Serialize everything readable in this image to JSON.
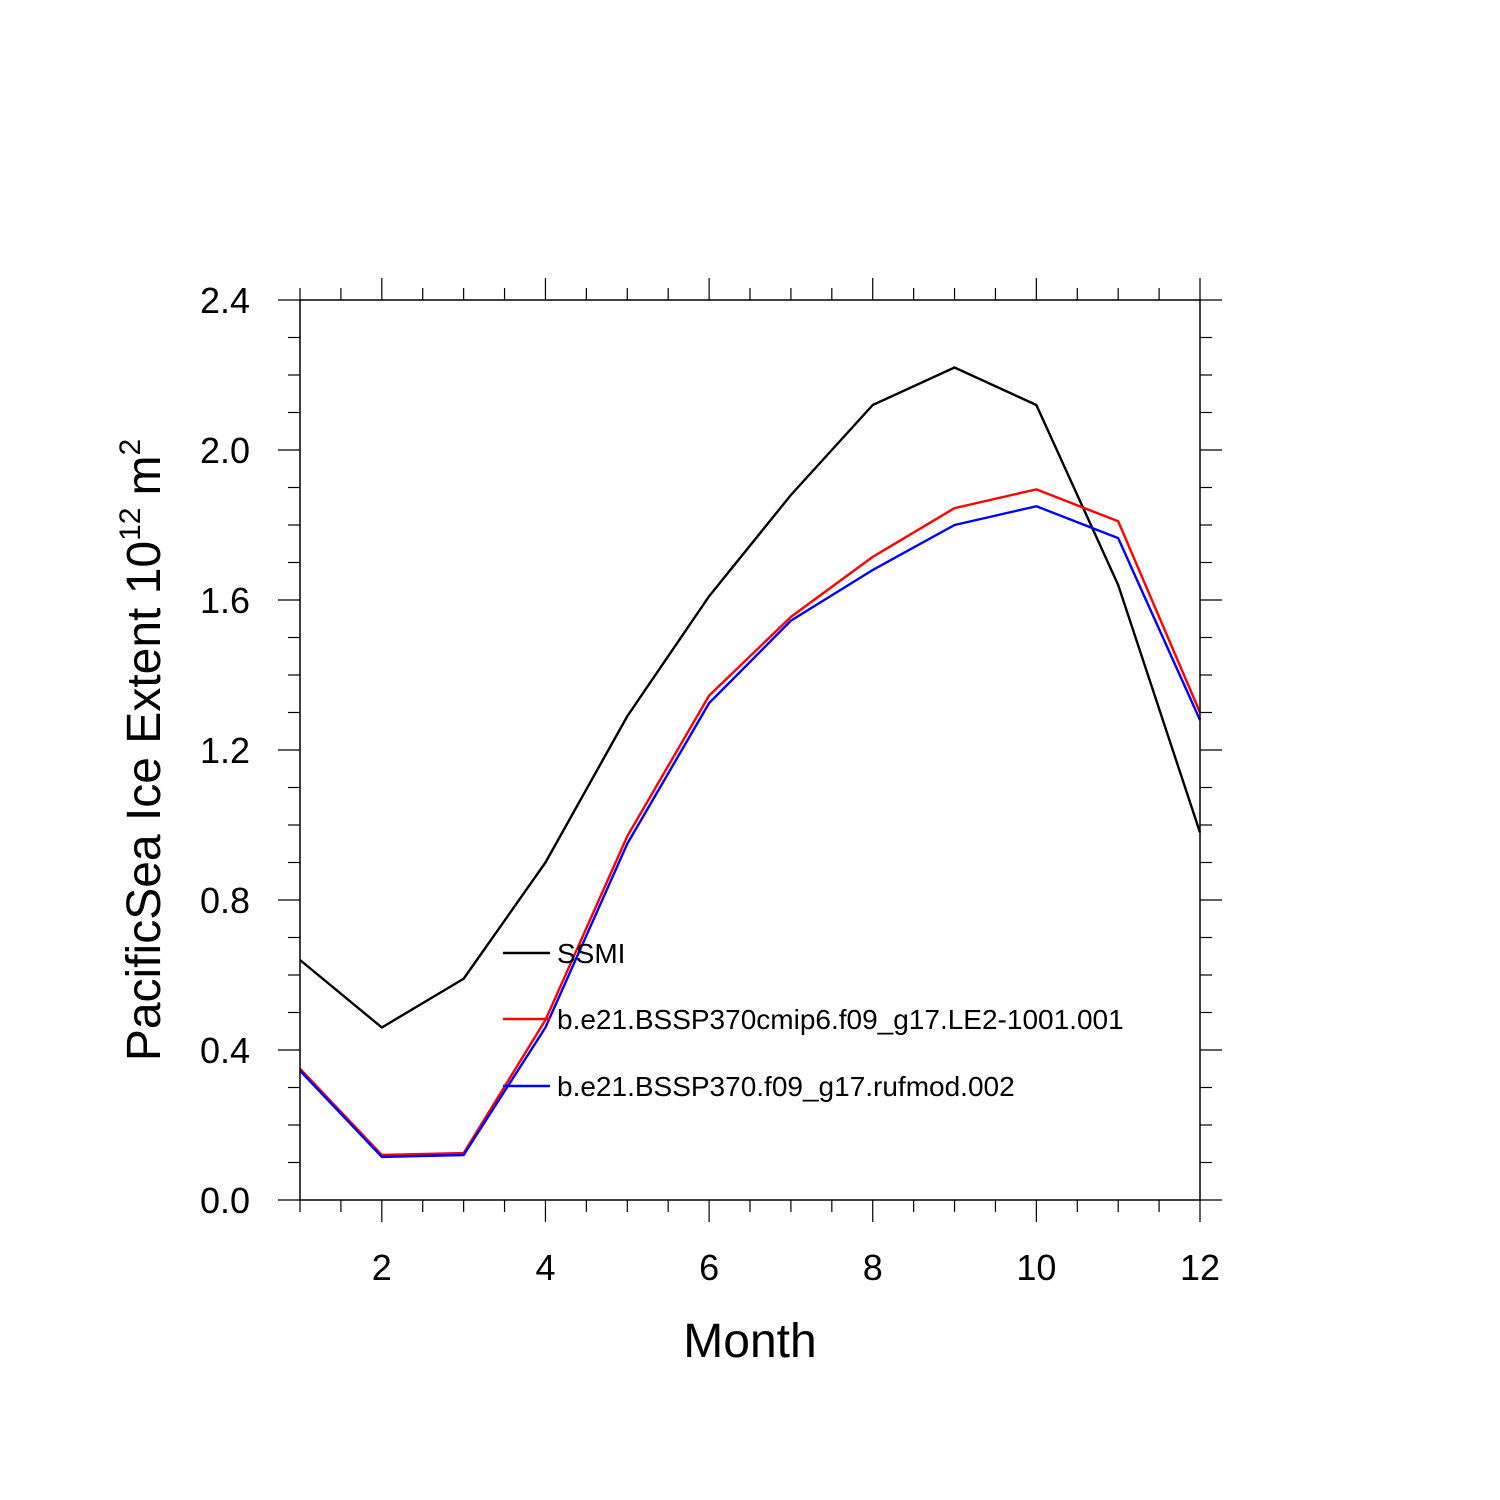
{
  "chart_data": {
    "type": "line",
    "title": "",
    "xlabel": "Month",
    "ylabel": {
      "main": "PacificSea Ice Extent 10",
      "exponent": "12",
      "unit": "m",
      "unit_exponent": "2"
    },
    "xlim": [
      1,
      12
    ],
    "ylim": [
      0,
      2.4
    ],
    "x": [
      1,
      2,
      3,
      4,
      5,
      6,
      7,
      8,
      9,
      10,
      11,
      12
    ],
    "x_major_ticks": [
      2,
      4,
      6,
      8,
      10,
      12
    ],
    "x_minor_step": 0.5,
    "y_major_ticks": [
      "0.0",
      "0.4",
      "0.8",
      "1.2",
      "1.6",
      "2.0",
      "2.4"
    ],
    "y_minor_step": 0.1,
    "grid": false,
    "legend_position": "center-left",
    "series": [
      {
        "name": "SSMI",
        "color": "#000000",
        "values": [
          0.64,
          0.46,
          0.59,
          0.9,
          1.29,
          1.61,
          1.88,
          2.12,
          2.22,
          2.12,
          1.64,
          0.98
        ]
      },
      {
        "name": "b.e21.BSSP370cmip6.f09_g17.LE2-1001.001",
        "color": "#ff0000",
        "values": [
          0.35,
          0.12,
          0.125,
          0.48,
          0.97,
          1.345,
          1.555,
          1.715,
          1.845,
          1.895,
          1.81,
          1.3
        ]
      },
      {
        "name": "b.e21.BSSP370.f09_g17.rufmod.002",
        "color": "#0000ff",
        "values": [
          0.345,
          0.115,
          0.12,
          0.46,
          0.95,
          1.325,
          1.545,
          1.68,
          1.8,
          1.85,
          1.765,
          1.28
        ]
      }
    ]
  }
}
